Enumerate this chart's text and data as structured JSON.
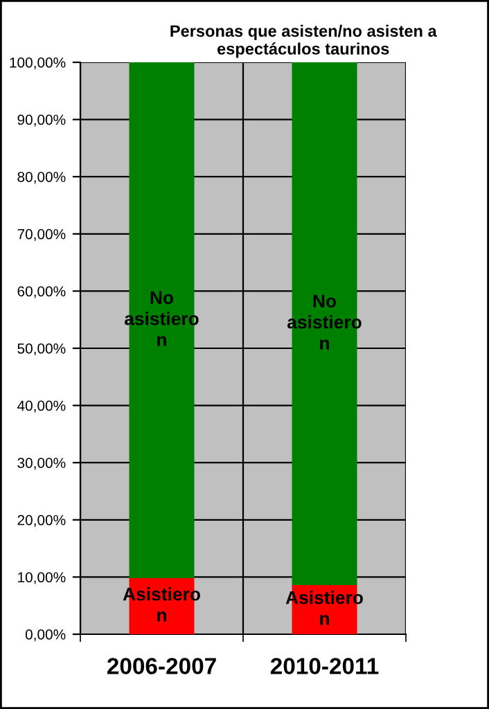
{
  "chart_data": {
    "type": "bar",
    "stacked": true,
    "title": "Personas que asisten/no asisten a espectáculos taurinos",
    "categories": [
      "2006-2007",
      "2010-2011"
    ],
    "series": [
      {
        "name": "Asistieron",
        "color": "#ff0000",
        "values": [
          9.8,
          8.6
        ]
      },
      {
        "name": "No asistieron",
        "color": "#008000",
        "values": [
          90.2,
          91.4
        ]
      }
    ],
    "ylim": [
      0,
      100
    ],
    "yticks": [
      {
        "value": 0,
        "label": "0,00%"
      },
      {
        "value": 10,
        "label": "10,00%"
      },
      {
        "value": 20,
        "label": "20,00%"
      },
      {
        "value": 30,
        "label": "30,00%"
      },
      {
        "value": 40,
        "label": "40,00%"
      },
      {
        "value": 50,
        "label": "50,00%"
      },
      {
        "value": 60,
        "label": "60,00%"
      },
      {
        "value": 70,
        "label": "70,00%"
      },
      {
        "value": 80,
        "label": "80,00%"
      },
      {
        "value": 90,
        "label": "90,00%"
      },
      {
        "value": 100,
        "label": "100,00%"
      }
    ],
    "grid": true
  }
}
